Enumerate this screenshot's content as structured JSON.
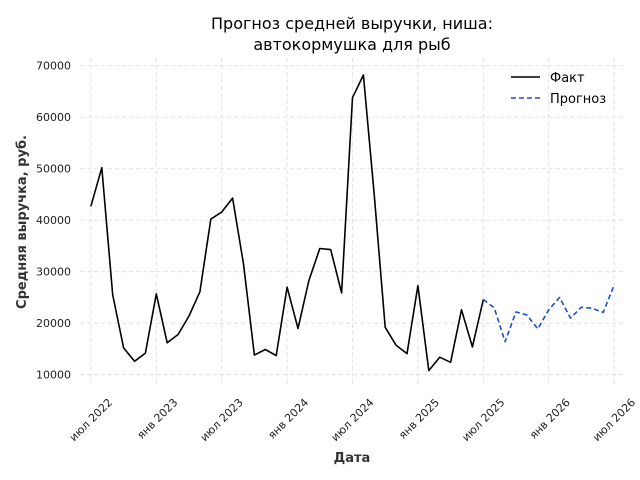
{
  "chart_data": {
    "type": "line",
    "title_lines": [
      "Прогноз средней выручки, ниша:",
      "автокормушка для рыб"
    ],
    "xlabel": "Дата",
    "ylabel": "Средняя выручка, руб.",
    "x_ticks": [
      {
        "date": "2022-07",
        "label": "июл 2022"
      },
      {
        "date": "2023-01",
        "label": "янв 2023"
      },
      {
        "date": "2023-07",
        "label": "июл 2023"
      },
      {
        "date": "2024-01",
        "label": "янв 2024"
      },
      {
        "date": "2024-07",
        "label": "июл 2024"
      },
      {
        "date": "2025-01",
        "label": "янв 2025"
      },
      {
        "date": "2025-07",
        "label": "июл 2025"
      },
      {
        "date": "2026-01",
        "label": "янв 2026"
      },
      {
        "date": "2026-07",
        "label": "июл 2026"
      }
    ],
    "y_ticks": [
      10000,
      20000,
      30000,
      40000,
      50000,
      60000,
      70000
    ],
    "ylim": [
      8000,
      71500
    ],
    "xlim": [
      "2022-06",
      "2026-08"
    ],
    "grid": true,
    "legend_position": "top-right",
    "series": [
      {
        "name": "Факт",
        "color": "#000000",
        "style": "solid",
        "x": [
          "2022-07",
          "2022-08",
          "2022-09",
          "2022-10",
          "2022-11",
          "2022-12",
          "2023-01",
          "2023-02",
          "2023-03",
          "2023-04",
          "2023-05",
          "2023-06",
          "2023-07",
          "2023-08",
          "2023-09",
          "2023-10",
          "2023-11",
          "2023-12",
          "2024-01",
          "2024-02",
          "2024-03",
          "2024-04",
          "2024-05",
          "2024-06",
          "2024-07",
          "2024-08",
          "2024-09",
          "2024-10",
          "2024-11",
          "2024-12",
          "2025-01",
          "2025-02",
          "2025-03",
          "2025-04",
          "2025-05",
          "2025-06",
          "2025-07"
        ],
        "values": [
          42700,
          50200,
          25500,
          15200,
          12600,
          14200,
          25700,
          16200,
          17800,
          21400,
          26100,
          40200,
          41600,
          44300,
          31500,
          13800,
          14900,
          13700,
          27000,
          19000,
          28300,
          34500,
          34300,
          25900,
          63800,
          68200,
          44800,
          19200,
          15700,
          14100,
          27300,
          10800,
          13400,
          12400,
          22600,
          15400,
          24600
        ]
      },
      {
        "name": "Прогноз",
        "color": "#1f4fc9",
        "style": "dashed",
        "x": [
          "2025-07",
          "2025-08",
          "2025-09",
          "2025-10",
          "2025-11",
          "2025-12",
          "2026-01",
          "2026-02",
          "2026-03",
          "2026-04",
          "2026-05",
          "2026-06",
          "2026-07"
        ],
        "values": [
          24600,
          23000,
          16400,
          22200,
          21600,
          18900,
          22600,
          25000,
          21000,
          23100,
          22900,
          22100,
          27400
        ]
      }
    ]
  }
}
